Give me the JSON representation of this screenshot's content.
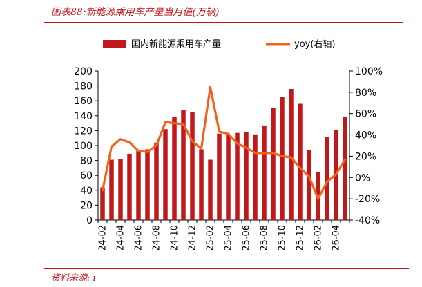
{
  "header": {
    "title": "图表88:新能源乘用车产量当月值(万辆)"
  },
  "footer": {
    "source": "资料来源: i"
  },
  "chart_data": {
    "type": "bar",
    "title": "图表88:新能源乘用车产量当月值(万辆)",
    "xlabel": "",
    "ylabel": "",
    "categories": [
      "24-02",
      "24-03",
      "24-04",
      "24-05",
      "24-06",
      "24-07",
      "24-08",
      "24-09",
      "24-10",
      "24-11",
      "24-12",
      "25-01",
      "25-02",
      "25-03",
      "25-04",
      "25-05",
      "25-06",
      "25-07",
      "25-08",
      "25-09",
      "25-10",
      "25-11",
      "25-12",
      "26-01",
      "26-02",
      "26-03",
      "26-04",
      "26-05"
    ],
    "x_tick_labels": [
      "24-02",
      "24-04",
      "24-06",
      "24-08",
      "24-10",
      "24-12",
      "25-02",
      "25-04",
      "25-06",
      "25-08",
      "25-10",
      "25-12",
      "26-02",
      "26-04"
    ],
    "series": [
      {
        "name": "国内新能源乘用车产量",
        "type": "bar",
        "axis": "left",
        "color": "#c0191c",
        "values": [
          44,
          81,
          82,
          89,
          93,
          95,
          104,
          122,
          138,
          148,
          145,
          95,
          81,
          116,
          114,
          117,
          118,
          115,
          127,
          150,
          165,
          176,
          156,
          94,
          64,
          112,
          121,
          139
        ]
      },
      {
        "name": "yoy(右轴)",
        "type": "line",
        "axis": "right",
        "color": "#f2611d",
        "values": [
          -12,
          29,
          36,
          33,
          25,
          24,
          30,
          52,
          51,
          50,
          34,
          27,
          85,
          43,
          41,
          32,
          28,
          23,
          23,
          23,
          20,
          19,
          9,
          1,
          -20,
          -4,
          3,
          17
        ]
      }
    ],
    "left_axis": {
      "min": 0,
      "max": 200,
      "step": 20
    },
    "right_axis": {
      "min": -40,
      "max": 100,
      "step": 20,
      "format": "percent"
    },
    "grid": false,
    "legend": {
      "placement": "top-center"
    }
  }
}
